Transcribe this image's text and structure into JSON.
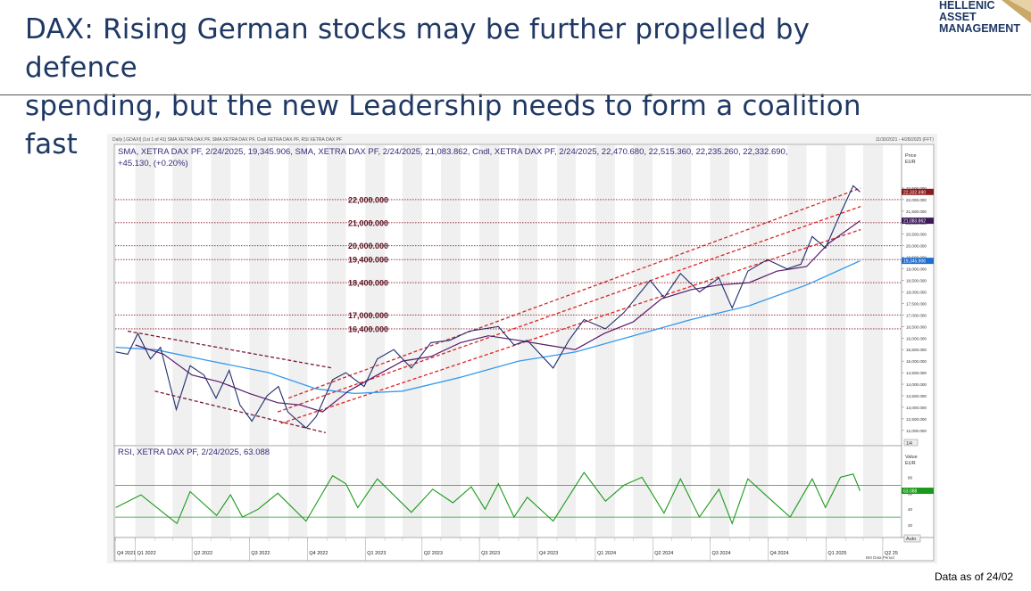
{
  "slide": {
    "title_line1": "DAX: Rising German stocks may be further propelled by defence",
    "title_line2": "spending, but the new Leadership needs to form a coalition fast",
    "footnote": "Data as of 24/02"
  },
  "logo": {
    "line1": "HELLENIC",
    "line2": "ASSET",
    "line3": "MANAGEMENT"
  },
  "chart_header": {
    "meta_left": "Daily [.GDAXI] (1st 1 of 41) SMA XETRA DAX PF, SMA XETRA DAX PF, Cndl XETRA DAX PF, RSI XETRA DAX PF",
    "meta_right": "11/30/2021 - 4/28/2025 (FFT)",
    "legend_line1": "SMA, XETRA DAX PF, 2/24/2025, 19,345.906, SMA, XETRA DAX PF, 2/24/2025, 21,083.862, Cndl, XETRA DAX PF, 2/24/2025, 22,470.680, 22,515.360, 22,235.260, 22,332.690,",
    "legend_line2": "+45.130, (+0.20%)",
    "rsi_legend": "RSI, XETRA DAX PF, 2/24/2025, 63.088",
    "price_axis_title": "Price",
    "price_axis_unit": "EUR",
    "rsi_axis_title": "Value",
    "rsi_axis_unit": "EUR",
    "auto_label": "Auto",
    "period_label": "BM Data Period",
    "zoom_label": "1/4"
  },
  "chart_data": {
    "type": "line",
    "series": [
      {
        "name": "Cndl, XETRA DAX PF",
        "color": "#1f2d6b"
      },
      {
        "name": "SMA, XETRA DAX PF (slow)",
        "color": "#3399ee"
      },
      {
        "name": "SMA, XETRA DAX PF (fast)",
        "color": "#5a1a6b"
      },
      {
        "name": "RSI, XETRA DAX PF",
        "color": "#1a9a1a"
      }
    ],
    "price_levels": [
      {
        "label": "22,000.000",
        "value": 22000
      },
      {
        "label": "21,000.000",
        "value": 21000
      },
      {
        "label": "20,000.000",
        "value": 20000
      },
      {
        "label": "19,400.000",
        "value": 19400
      },
      {
        "label": "18,400.000",
        "value": 18400
      },
      {
        "label": "17,000.000",
        "value": 17000
      },
      {
        "label": "16,400.000",
        "value": 16400
      }
    ],
    "yticks": [
      "22,500.000",
      "22,000.000",
      "21,500.000",
      "21,000.000",
      "20,500.000",
      "20,000.000",
      "19,500.000",
      "19,000.000",
      "18,500.000",
      "18,000.000",
      "17,500.000",
      "17,000.000",
      "16,500.000",
      "16,000.000",
      "15,500.000",
      "15,000.000",
      "14,500.000",
      "14,000.000",
      "13,500.000",
      "13,000.000",
      "12,500.000",
      "12,000.000"
    ],
    "ytick_values": [
      22500,
      22000,
      21500,
      21000,
      20500,
      20000,
      19500,
      19000,
      18500,
      18000,
      17500,
      17000,
      16500,
      16000,
      15500,
      15000,
      14500,
      14000,
      13500,
      13000,
      12500,
      12000
    ],
    "ylim": [
      11800,
      23000
    ],
    "price_tags": [
      {
        "label": "22,332.690",
        "value": 22332.69,
        "color": "#8b1a1a"
      },
      {
        "label": "21,083.862",
        "value": 21083.862,
        "color": "#3a1a5a"
      },
      {
        "label": "19,345.906",
        "value": 19345.906,
        "color": "#1e6fd0"
      }
    ],
    "quarters": [
      "Q4 2021",
      "Q1 2022",
      "Q2 2022",
      "Q3 2022",
      "Q4 2022",
      "Q1 2023",
      "Q2 2023",
      "Q3 2023",
      "Q4 2023",
      "Q1 2024",
      "Q2 2024",
      "Q3 2024",
      "Q4 2024",
      "Q1 2025",
      "Q2 25"
    ],
    "close": [
      [
        "2021-12-01",
        15400
      ],
      [
        "2021-12-20",
        15300
      ],
      [
        "2022-01-05",
        16200
      ],
      [
        "2022-01-25",
        15100
      ],
      [
        "2022-02-10",
        15600
      ],
      [
        "2022-03-07",
        12900
      ],
      [
        "2022-03-29",
        14800
      ],
      [
        "2022-04-20",
        14400
      ],
      [
        "2022-05-09",
        13400
      ],
      [
        "2022-05-30",
        14600
      ],
      [
        "2022-06-16",
        13100
      ],
      [
        "2022-07-05",
        12400
      ],
      [
        "2022-07-29",
        13500
      ],
      [
        "2022-08-16",
        13900
      ],
      [
        "2022-08-31",
        12800
      ],
      [
        "2022-09-29",
        12100
      ],
      [
        "2022-10-15",
        12600
      ],
      [
        "2022-11-10",
        14200
      ],
      [
        "2022-12-01",
        14500
      ],
      [
        "2022-12-30",
        13900
      ],
      [
        "2023-01-20",
        15100
      ],
      [
        "2023-02-15",
        15500
      ],
      [
        "2023-03-15",
        14700
      ],
      [
        "2023-04-15",
        15800
      ],
      [
        "2023-05-15",
        15900
      ],
      [
        "2023-06-15",
        16300
      ],
      [
        "2023-07-31",
        16500
      ],
      [
        "2023-08-25",
        15700
      ],
      [
        "2023-09-15",
        15900
      ],
      [
        "2023-10-26",
        14700
      ],
      [
        "2023-11-20",
        15900
      ],
      [
        "2023-12-14",
        16800
      ],
      [
        "2024-01-17",
        16400
      ],
      [
        "2024-02-15",
        17100
      ],
      [
        "2024-03-28",
        18500
      ],
      [
        "2024-04-19",
        17750
      ],
      [
        "2024-05-15",
        18800
      ],
      [
        "2024-06-14",
        18000
      ],
      [
        "2024-07-15",
        18600
      ],
      [
        "2024-08-05",
        17300
      ],
      [
        "2024-08-30",
        18900
      ],
      [
        "2024-09-30",
        19400
      ],
      [
        "2024-10-31",
        19000
      ],
      [
        "2024-11-22",
        19200
      ],
      [
        "2024-12-10",
        20400
      ],
      [
        "2024-12-31",
        19900
      ],
      [
        "2025-01-24",
        21400
      ],
      [
        "2025-02-13",
        22600
      ],
      [
        "2025-02-24",
        22332.69
      ]
    ],
    "sma_fast": [
      [
        "2022-01-01",
        15700
      ],
      [
        "2022-02-15",
        15300
      ],
      [
        "2022-04-01",
        14400
      ],
      [
        "2022-05-15",
        14100
      ],
      [
        "2022-07-01",
        13600
      ],
      [
        "2022-08-15",
        13200
      ],
      [
        "2022-09-20",
        13100
      ],
      [
        "2022-10-25",
        12800
      ],
      [
        "2022-12-05",
        13700
      ],
      [
        "2023-01-20",
        14400
      ],
      [
        "2023-03-01",
        15000
      ],
      [
        "2023-04-15",
        15200
      ],
      [
        "2023-06-01",
        15800
      ],
      [
        "2023-07-15",
        16100
      ],
      [
        "2023-09-01",
        15900
      ],
      [
        "2023-10-15",
        15700
      ],
      [
        "2023-11-30",
        15500
      ],
      [
        "2024-01-15",
        16200
      ],
      [
        "2024-03-01",
        16700
      ],
      [
        "2024-04-15",
        17700
      ],
      [
        "2024-06-01",
        18100
      ],
      [
        "2024-07-15",
        18300
      ],
      [
        "2024-09-01",
        18400
      ],
      [
        "2024-10-15",
        18900
      ],
      [
        "2024-12-01",
        19100
      ],
      [
        "2025-01-05",
        20100
      ],
      [
        "2025-02-24",
        21083.862
      ]
    ],
    "sma_slow": [
      [
        "2021-12-01",
        15600
      ],
      [
        "2022-02-01",
        15500
      ],
      [
        "2022-05-01",
        15000
      ],
      [
        "2022-08-01",
        14500
      ],
      [
        "2022-10-15",
        13800
      ],
      [
        "2022-12-15",
        13600
      ],
      [
        "2023-03-01",
        13700
      ],
      [
        "2023-06-01",
        14300
      ],
      [
        "2023-09-01",
        15000
      ],
      [
        "2023-12-01",
        15400
      ],
      [
        "2024-03-01",
        16100
      ],
      [
        "2024-06-01",
        16800
      ],
      [
        "2024-09-01",
        17400
      ],
      [
        "2024-12-01",
        18300
      ],
      [
        "2025-02-24",
        19345.906
      ]
    ],
    "rsi": [
      [
        "2021-12-01",
        42
      ],
      [
        "2022-01-10",
        58
      ],
      [
        "2022-02-15",
        35
      ],
      [
        "2022-03-08",
        22
      ],
      [
        "2022-03-29",
        62
      ],
      [
        "2022-05-10",
        32
      ],
      [
        "2022-06-01",
        58
      ],
      [
        "2022-06-20",
        30
      ],
      [
        "2022-07-15",
        40
      ],
      [
        "2022-08-15",
        60
      ],
      [
        "2022-09-29",
        25
      ],
      [
        "2022-11-10",
        82
      ],
      [
        "2022-12-01",
        72
      ],
      [
        "2022-12-20",
        42
      ],
      [
        "2023-01-20",
        78
      ],
      [
        "2023-03-15",
        36
      ],
      [
        "2023-04-18",
        65
      ],
      [
        "2023-05-20",
        48
      ],
      [
        "2023-06-18",
        68
      ],
      [
        "2023-07-10",
        40
      ],
      [
        "2023-07-31",
        72
      ],
      [
        "2023-08-25",
        30
      ],
      [
        "2023-09-15",
        55
      ],
      [
        "2023-10-26",
        25
      ],
      [
        "2023-12-14",
        86
      ],
      [
        "2024-01-17",
        50
      ],
      [
        "2024-02-15",
        70
      ],
      [
        "2024-03-15",
        80
      ],
      [
        "2024-04-19",
        35
      ],
      [
        "2024-05-15",
        78
      ],
      [
        "2024-06-14",
        30
      ],
      [
        "2024-07-15",
        65
      ],
      [
        "2024-08-05",
        22
      ],
      [
        "2024-08-30",
        78
      ],
      [
        "2024-10-01",
        55
      ],
      [
        "2024-11-05",
        30
      ],
      [
        "2024-12-10",
        78
      ],
      [
        "2024-12-31",
        42
      ],
      [
        "2025-01-24",
        80
      ],
      [
        "2025-02-13",
        84
      ],
      [
        "2025-02-24",
        63.088
      ]
    ],
    "rsi_ylim": [
      10,
      95
    ],
    "rsi_yticks": [
      80,
      60,
      40,
      20
    ],
    "rsi_levels": [
      70,
      30
    ],
    "rsi_tag": {
      "label": "63.088",
      "value": 63.088,
      "color": "#1a9a1a"
    },
    "trendlines": [
      {
        "name": "channel-upper-2022",
        "color": "#7a1530",
        "points": [
          [
            "2021-12-20",
            16300
          ],
          [
            "2022-11-10",
            14700
          ]
        ]
      },
      {
        "name": "channel-lower-2022",
        "color": "#7a1530",
        "points": [
          [
            "2022-02-01",
            13700
          ],
          [
            "2022-10-30",
            11900
          ]
        ]
      },
      {
        "name": "channel-upper",
        "color": "#e02020",
        "points": [
          [
            "2022-09-01",
            13400
          ],
          [
            "2025-02-25",
            22500
          ]
        ]
      },
      {
        "name": "channel-middle",
        "color": "#e02020",
        "points": [
          [
            "2022-08-15",
            12800
          ],
          [
            "2025-02-25",
            21700
          ]
        ]
      },
      {
        "name": "channel-lower",
        "color": "#e02020",
        "points": [
          [
            "2022-08-20",
            12300
          ],
          [
            "2025-02-25",
            20700
          ]
        ]
      }
    ]
  }
}
